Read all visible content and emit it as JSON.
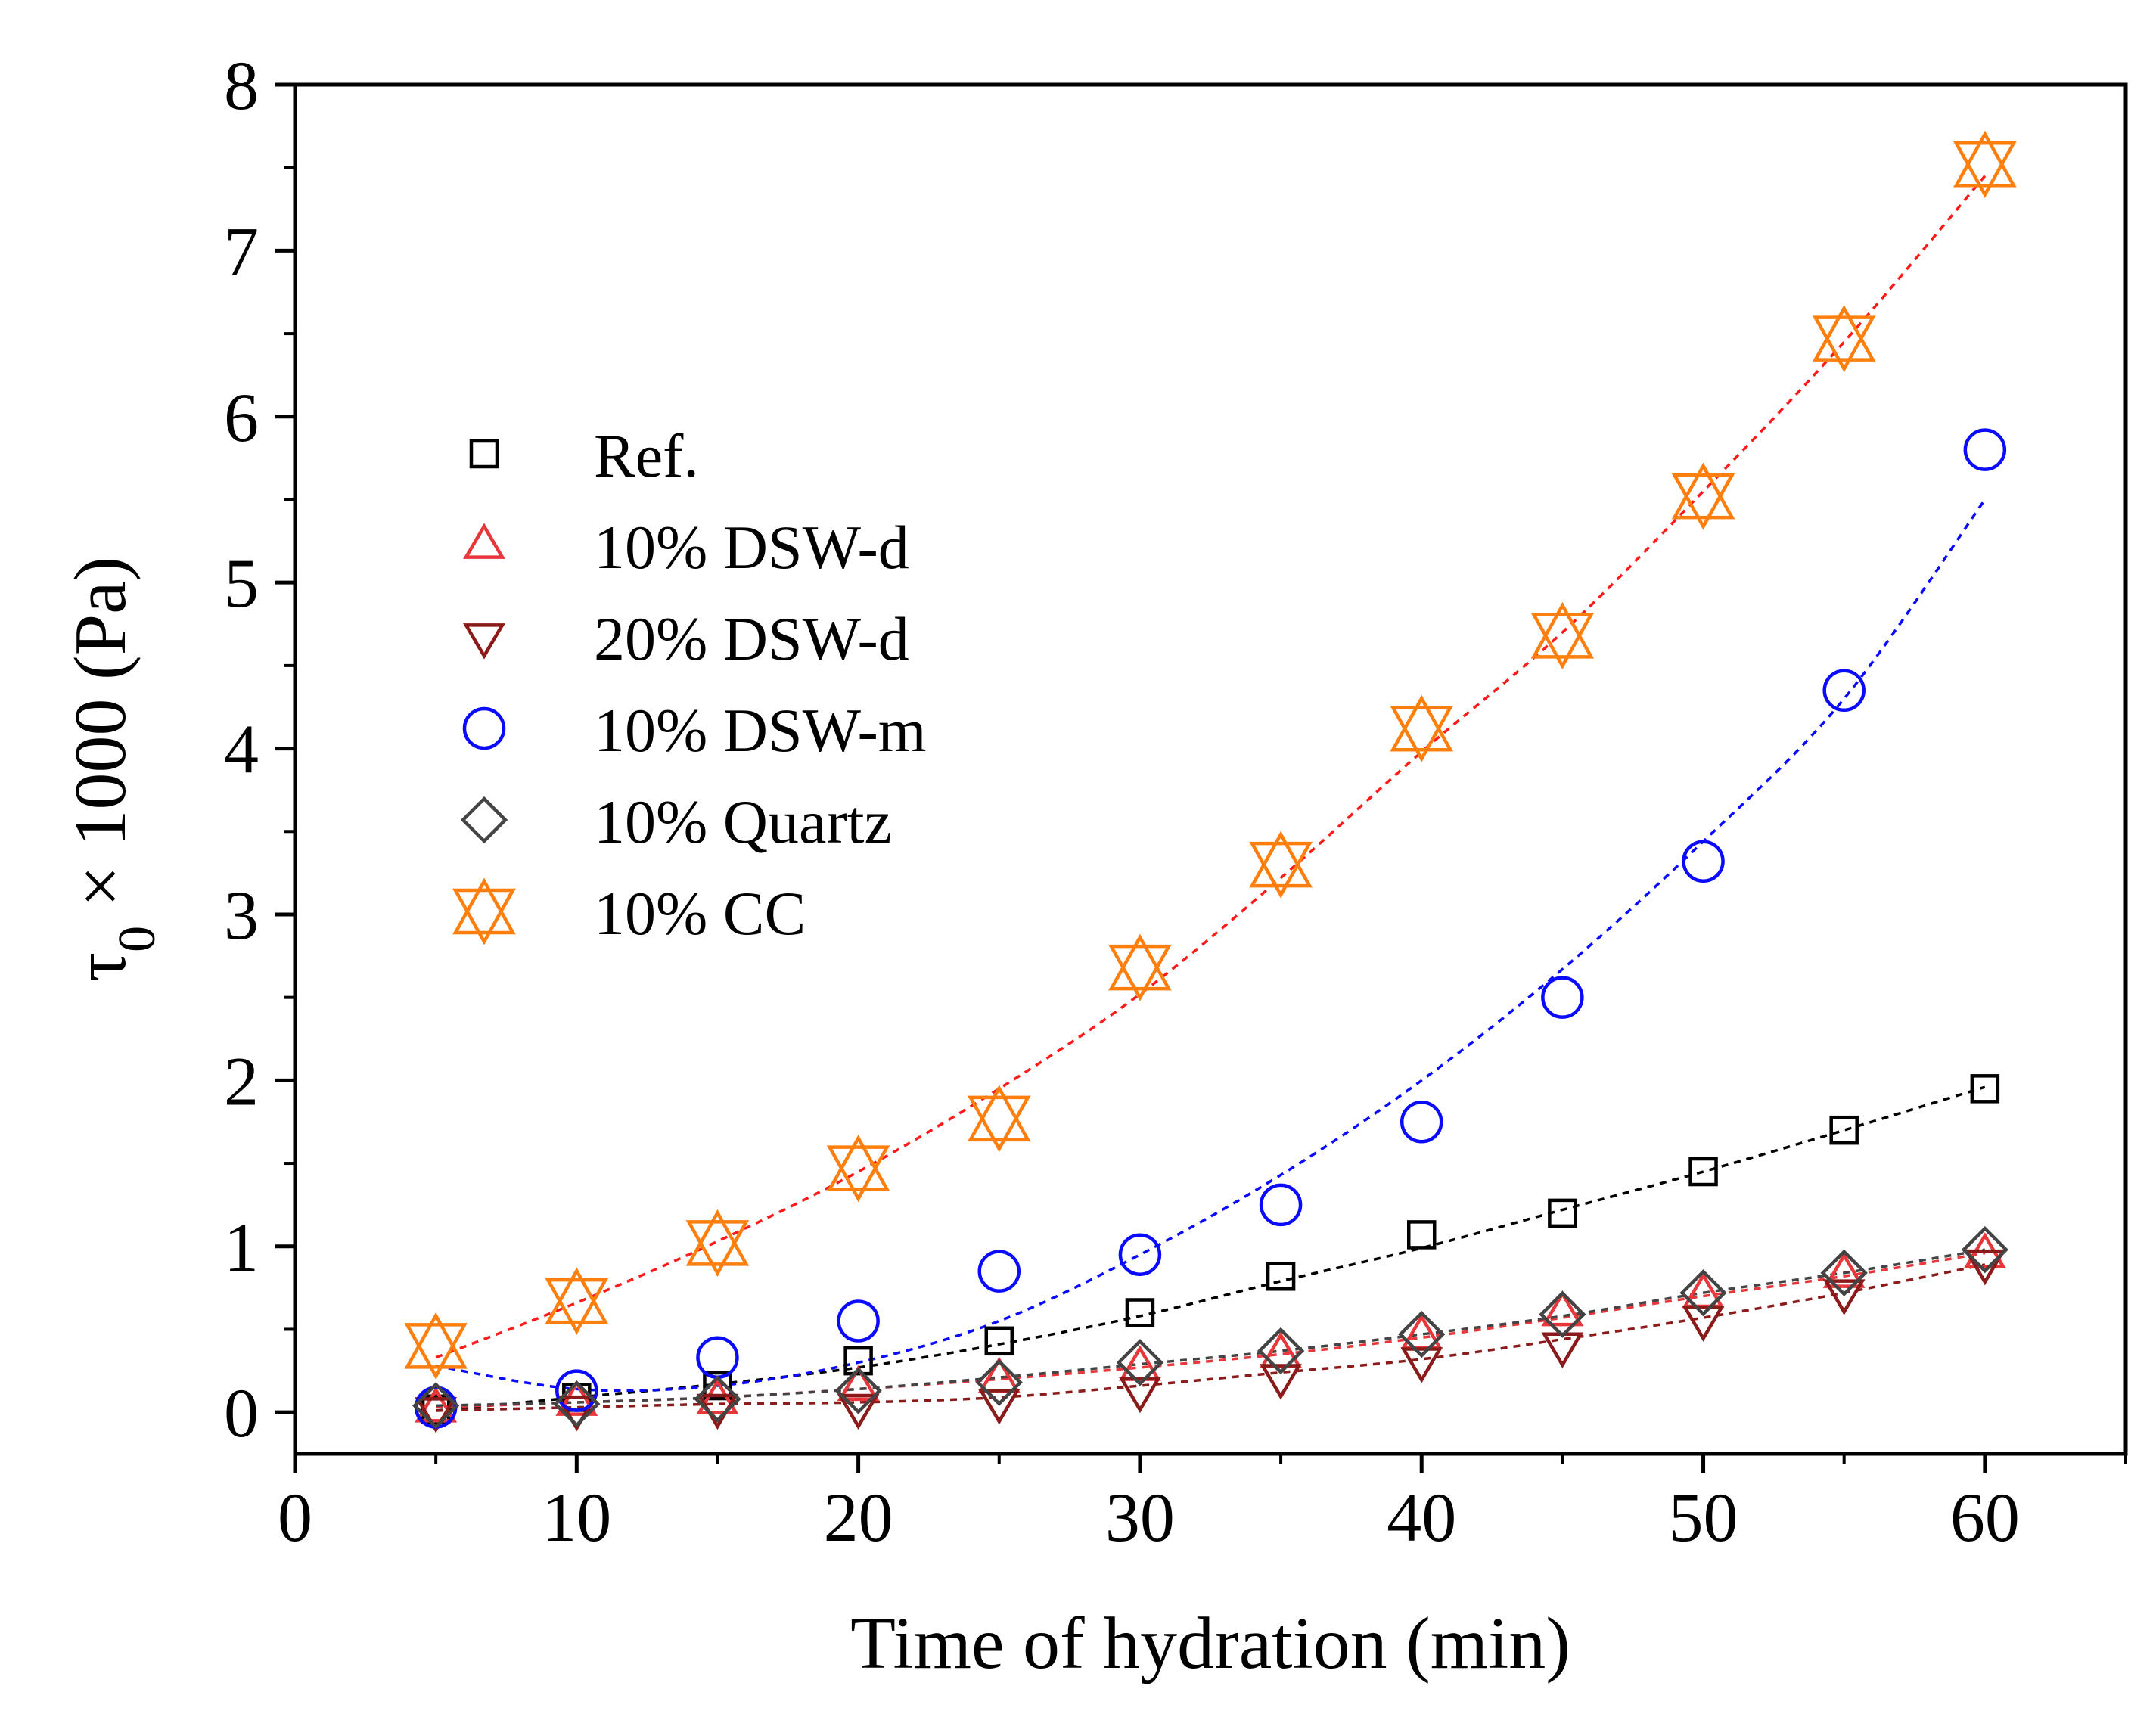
{
  "chart_data": {
    "type": "scatter",
    "title": "",
    "xlabel": "Time of hydration (min)",
    "ylabel": {
      "symbol": "τ",
      "subscript": "0",
      "rest": " × 1000 (Pa)"
    },
    "xlim": [
      0,
      65
    ],
    "ylim": [
      -0.25,
      8
    ],
    "x_ticks": [
      0,
      10,
      20,
      30,
      40,
      50,
      60
    ],
    "x_tick_labels": [
      "0",
      "10",
      "20",
      "30",
      "40",
      "50",
      "60"
    ],
    "y_ticks": [
      0,
      1,
      2,
      3,
      4,
      5,
      6,
      7,
      8
    ],
    "y_tick_labels": [
      "0",
      "1",
      "2",
      "3",
      "4",
      "5",
      "6",
      "7",
      "8"
    ],
    "grid": false,
    "legend_position": "center-left",
    "x": [
      5,
      10,
      15,
      20,
      25,
      30,
      35,
      40,
      45,
      50,
      55,
      60
    ],
    "series": [
      {
        "name": "Ref.",
        "marker": "square",
        "color": "#000000",
        "fit_color": "#000000",
        "values": [
          0.02,
          0.09,
          0.16,
          0.31,
          0.43,
          0.6,
          0.82,
          1.07,
          1.2,
          1.45,
          1.7,
          1.95
        ],
        "fit": [
          0.01,
          0.09,
          0.17,
          0.27,
          0.41,
          0.58,
          0.79,
          0.99,
          1.22,
          1.45,
          1.7,
          1.96
        ]
      },
      {
        "name": "10% DSW-d",
        "marker": "triangle-up",
        "color": "#e8363b",
        "fit_color": "#e8363b",
        "values": [
          0.02,
          0.06,
          0.07,
          0.15,
          0.2,
          0.27,
          0.35,
          0.46,
          0.6,
          0.71,
          0.83,
          0.95
        ],
        "fit": [
          0.03,
          0.06,
          0.09,
          0.14,
          0.2,
          0.27,
          0.35,
          0.45,
          0.57,
          0.7,
          0.82,
          0.96
        ]
      },
      {
        "name": "20% DSW-d",
        "marker": "triangle-down",
        "color": "#8b1a1a",
        "fit_color": "#8b1a1a",
        "values": [
          0.01,
          0.02,
          0.03,
          0.03,
          0.06,
          0.13,
          0.21,
          0.31,
          0.4,
          0.56,
          0.72,
          0.9
        ],
        "fit": [
          0.01,
          0.03,
          0.05,
          0.06,
          0.09,
          0.16,
          0.24,
          0.32,
          0.44,
          0.57,
          0.72,
          0.89
        ]
      },
      {
        "name": "10% DSW-m",
        "marker": "circle",
        "color": "#0a0aff",
        "fit_color": "#0a0aff",
        "values": [
          0.03,
          0.13,
          0.33,
          0.55,
          0.85,
          0.95,
          1.25,
          1.75,
          2.5,
          3.32,
          4.35,
          5.8
        ],
        "fit": [
          0.28,
          0.14,
          0.16,
          0.3,
          0.55,
          0.95,
          1.43,
          2.0,
          2.67,
          3.44,
          4.3,
          5.5
        ]
      },
      {
        "name": "10% Quartz",
        "marker": "diamond",
        "color": "#444444",
        "fit_color": "#444444",
        "values": [
          0.04,
          0.05,
          0.08,
          0.13,
          0.18,
          0.3,
          0.37,
          0.47,
          0.59,
          0.72,
          0.84,
          0.98
        ],
        "fit": [
          0.04,
          0.06,
          0.09,
          0.14,
          0.21,
          0.29,
          0.37,
          0.47,
          0.58,
          0.72,
          0.84,
          0.98
        ]
      },
      {
        "name": "10% CC",
        "marker": "x-triangles",
        "color": "#ff7f0e",
        "fit_color": "#ff1a1a",
        "values": [
          0.4,
          0.67,
          1.02,
          1.47,
          1.77,
          2.68,
          3.3,
          4.12,
          4.68,
          5.52,
          6.47,
          7.52
        ],
        "fit": [
          0.33,
          0.66,
          1.03,
          1.45,
          1.95,
          2.52,
          3.22,
          3.98,
          4.7,
          5.55,
          6.45,
          7.45
        ]
      }
    ]
  }
}
